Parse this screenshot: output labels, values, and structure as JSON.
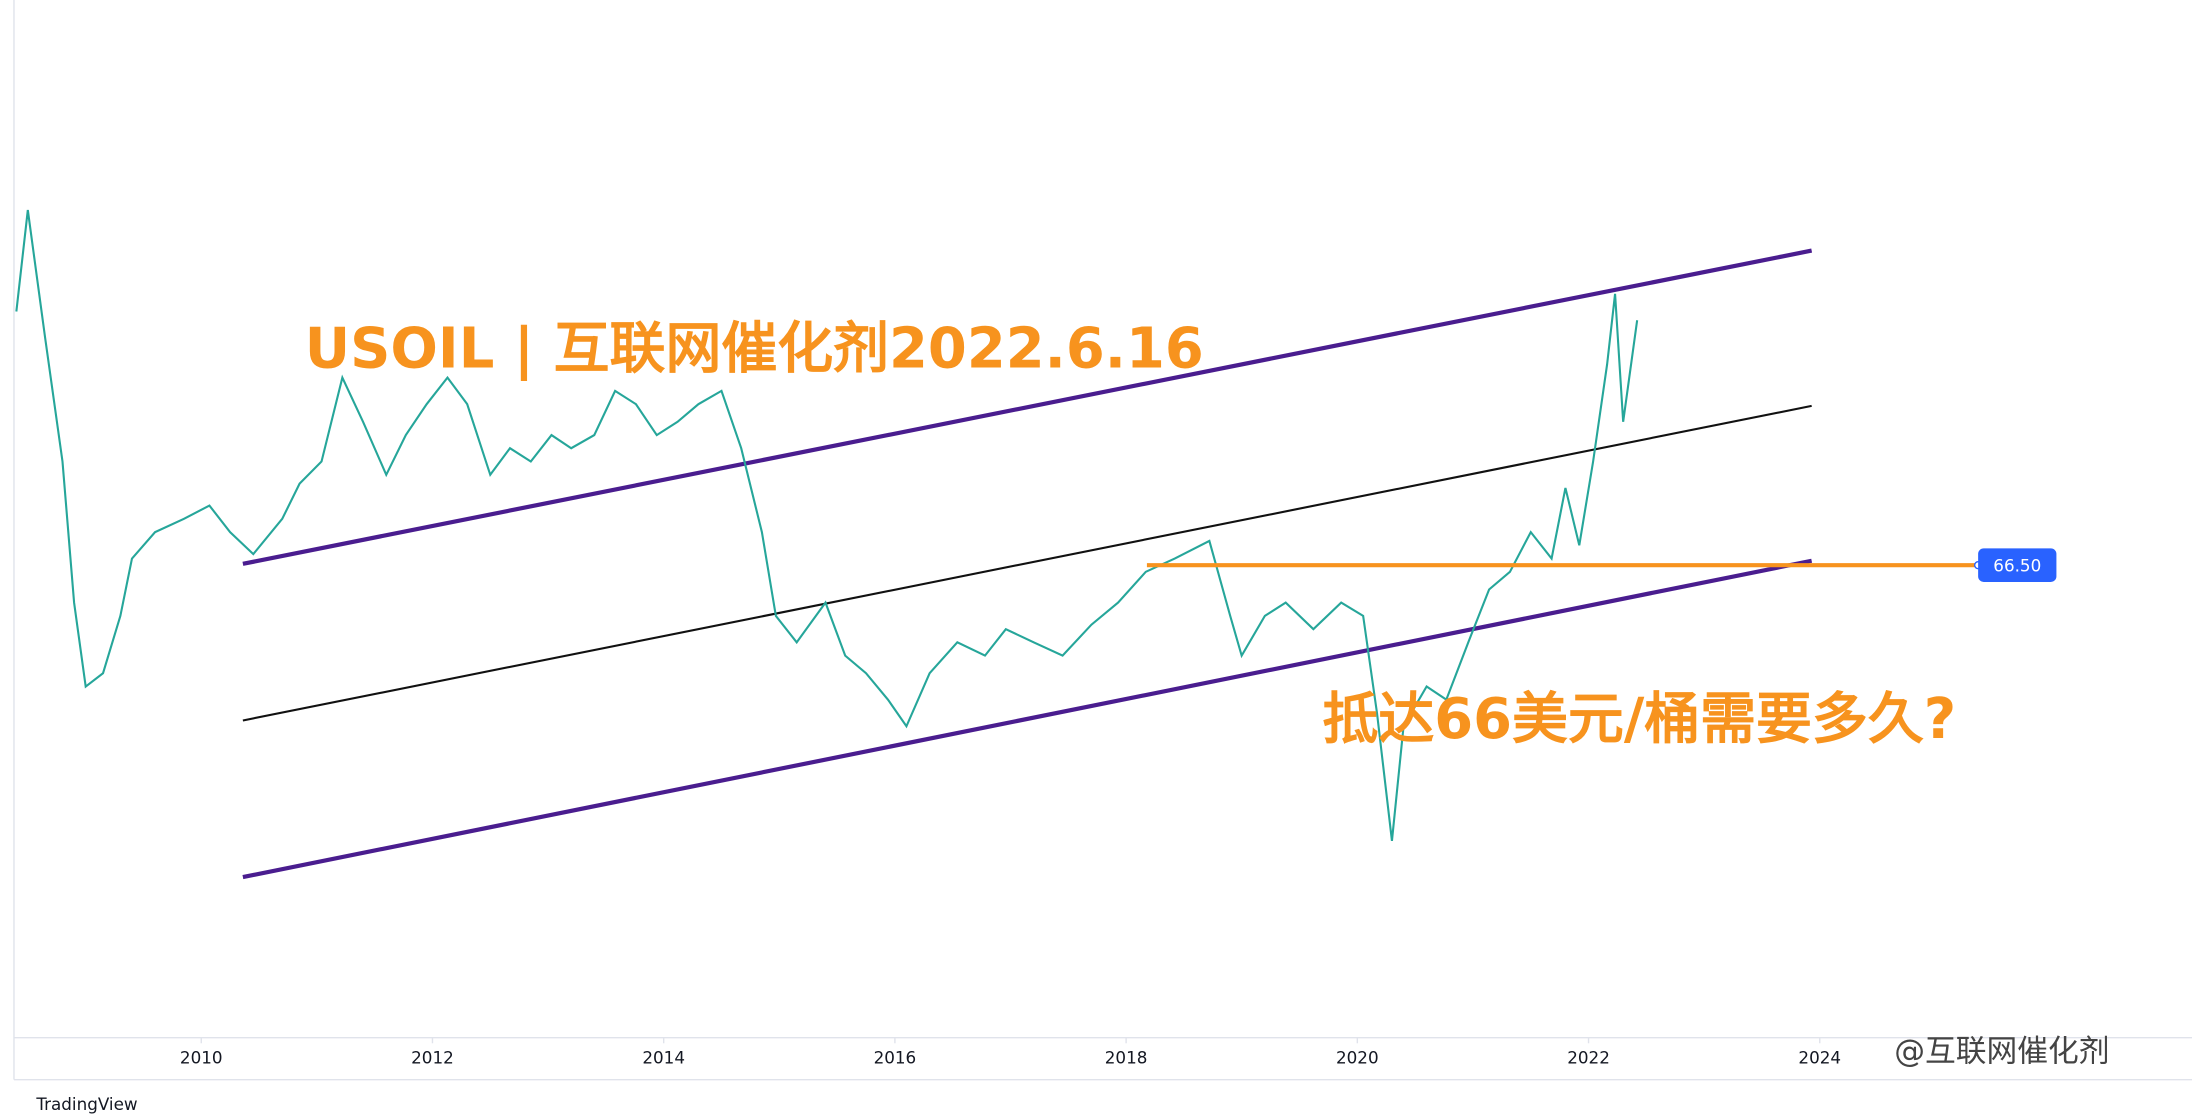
{
  "chart_data": {
    "type": "line",
    "title": "USOIL | 互联网催化剂2022.6.16",
    "annotation": "抵达66美元/桶需要多久?",
    "watermark": "@互联网催化剂",
    "brand": "TradingView",
    "x": [
      2008.4,
      2008.5,
      2008.65,
      2008.8,
      2008.9,
      2009.0,
      2009.15,
      2009.3,
      2009.4,
      2009.6,
      2009.85,
      2010.07,
      2010.25,
      2010.45,
      2010.7,
      2010.85,
      2011.04,
      2011.22,
      2011.4,
      2011.6,
      2011.77,
      2011.95,
      2012.13,
      2012.3,
      2012.5,
      2012.67,
      2012.85,
      2013.03,
      2013.2,
      2013.4,
      2013.58,
      2013.76,
      2013.94,
      2014.12,
      2014.3,
      2014.5,
      2014.67,
      2014.85,
      2014.97,
      2015.15,
      2015.4,
      2015.57,
      2015.75,
      2015.94,
      2016.1,
      2016.3,
      2016.54,
      2016.78,
      2016.96,
      2017.2,
      2017.45,
      2017.7,
      2017.93,
      2018.17,
      2018.42,
      2018.72,
      2018.9,
      2019.0,
      2019.2,
      2019.38,
      2019.62,
      2019.86,
      2020.05,
      2020.17,
      2020.3,
      2020.4,
      2020.6,
      2020.77,
      2020.96,
      2021.14,
      2021.32,
      2021.5,
      2021.68,
      2021.8,
      2021.92,
      2022.04,
      2022.16,
      2022.23,
      2022.3,
      2022.42
    ],
    "series": [
      {
        "color": "#26a69a",
        "values": [
          124,
          147,
          118,
          90,
          58,
          39,
          42,
          55,
          68,
          74,
          77,
          80,
          74,
          69,
          77,
          85,
          90,
          109,
          99,
          87,
          96,
          103,
          109,
          103,
          87,
          93,
          90,
          96,
          93,
          96,
          106,
          103,
          96,
          99,
          103,
          106,
          93,
          74,
          55,
          49,
          58,
          46,
          42,
          36,
          30,
          42,
          49,
          46,
          52,
          49,
          46,
          53,
          58,
          65,
          68,
          72,
          55,
          46,
          55,
          58,
          52,
          58,
          55,
          33,
          4,
          30,
          39,
          36,
          49,
          61,
          65,
          74,
          68,
          84,
          71,
          90,
          112,
          128,
          99,
          122
        ]
      }
    ],
    "xlim": [
      2008.38,
      2027.22
    ],
    "ylim": [
      -40.6,
      194.6
    ],
    "xticks": [
      2010,
      2012,
      2014,
      2016,
      2018,
      2020,
      2022,
      2024
    ],
    "trendlines": [
      {
        "x": [
          2010.36,
          2023.93
        ],
        "y": [
          66.8,
          137.8
        ],
        "color": "#4a1d8f"
      },
      {
        "x": [
          2010.36,
          2023.93
        ],
        "y": [
          31.3,
          102.6
        ],
        "color": "#111111"
      },
      {
        "x": [
          2010.36,
          2023.93
        ],
        "y": [
          -4.2,
          67.5
        ],
        "color": "#4a1d8f"
      }
    ],
    "hline": {
      "x": [
        2018.18,
        2025.37
      ],
      "level": {
        "value": 66.5,
        "label": "66.50"
      },
      "color": "#f7931e"
    }
  }
}
